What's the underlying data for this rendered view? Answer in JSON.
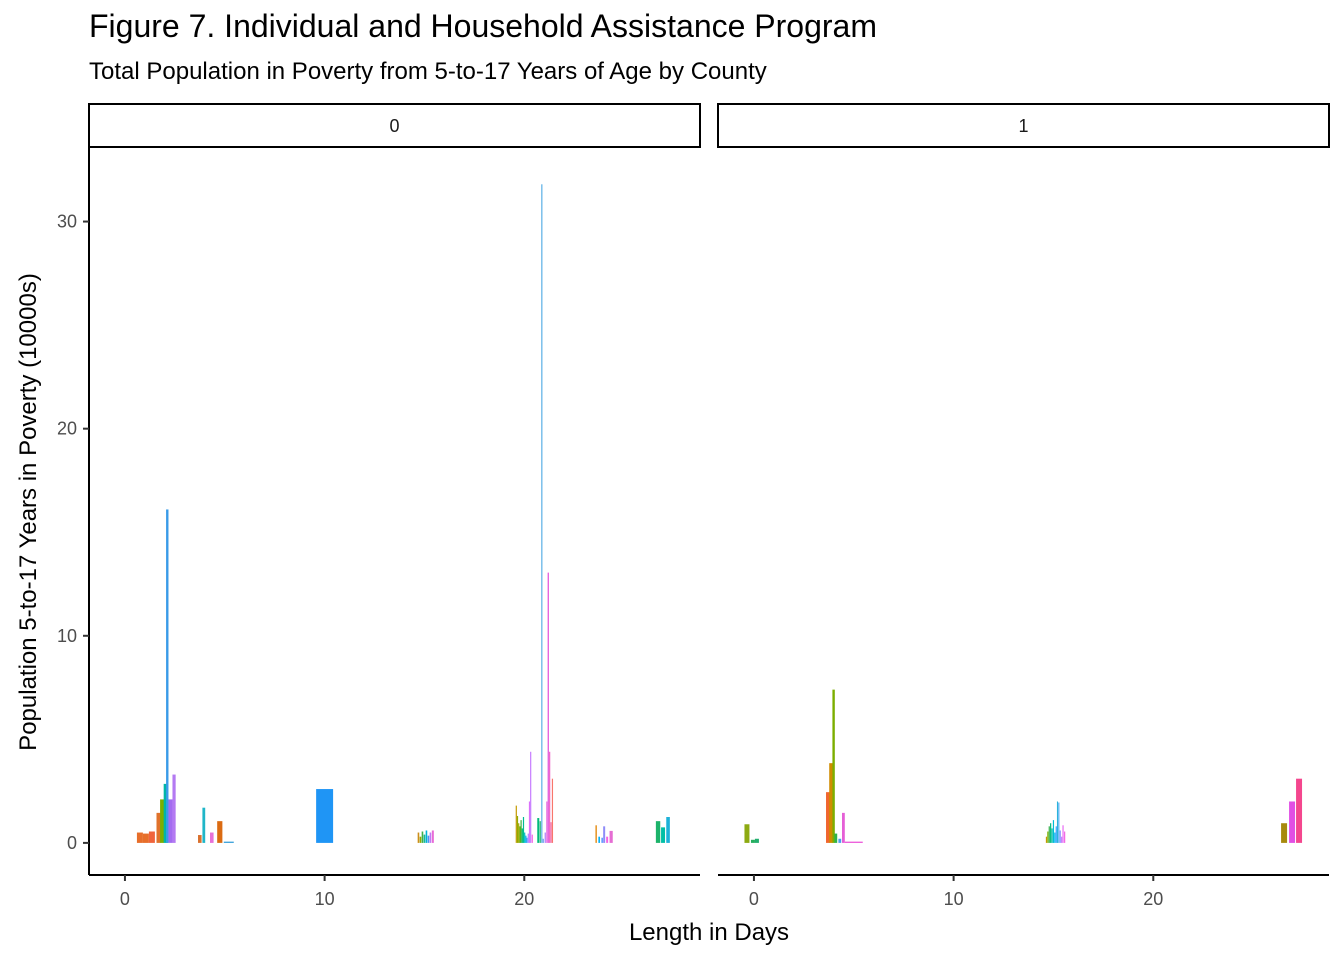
{
  "chart_data": {
    "type": "bar",
    "title": "Figure 7. Individual and Household Assistance Program",
    "subtitle": "Total Population in Poverty from 5-to-17 Years of Age by County",
    "xlabel": "Length in Days",
    "ylabel": "Population 5-to-17 Years in Poverty (10000s)",
    "xlim": [
      -1.8,
      28.8
    ],
    "ylim": [
      -1.55,
      33.6
    ],
    "x_ticks": [
      0,
      10,
      20
    ],
    "y_ticks": [
      0,
      10,
      20,
      30
    ],
    "grid": false,
    "legend": "none",
    "facets": [
      {
        "label": "0",
        "bars": [
          {
            "x": 0.75,
            "w": 0.3,
            "y": 0.5,
            "color": "#E76E2A"
          },
          {
            "x": 1.05,
            "w": 0.3,
            "y": 0.45,
            "color": "#E76E2A"
          },
          {
            "x": 1.35,
            "w": 0.3,
            "y": 0.55,
            "color": "#F0643C"
          },
          {
            "x": 1.68,
            "w": 0.2,
            "y": 1.45,
            "color": "#E0722B"
          },
          {
            "x": 1.86,
            "w": 0.2,
            "y": 2.1,
            "color": "#7CAE00"
          },
          {
            "x": 2.04,
            "w": 0.2,
            "y": 2.85,
            "color": "#00B5A8"
          },
          {
            "x": 2.12,
            "w": 0.12,
            "y": 16.1,
            "color": "#3A9BE8"
          },
          {
            "x": 2.28,
            "w": 0.2,
            "y": 2.1,
            "color": "#A46CF0"
          },
          {
            "x": 2.46,
            "w": 0.16,
            "y": 3.3,
            "color": "#B47AF2"
          },
          {
            "x": 3.75,
            "w": 0.18,
            "y": 0.38,
            "color": "#D9702D"
          },
          {
            "x": 3.95,
            "w": 0.14,
            "y": 1.7,
            "color": "#1FB6C8"
          },
          {
            "x": 4.35,
            "w": 0.18,
            "y": 0.5,
            "color": "#E771D8"
          },
          {
            "x": 4.75,
            "w": 0.26,
            "y": 1.05,
            "color": "#DB6B12"
          },
          {
            "x": 5.2,
            "w": 0.5,
            "y": 0.06,
            "color": "#2E9BD8"
          },
          {
            "x": 10.0,
            "w": 0.85,
            "y": 2.6,
            "color": "#1F95F5"
          },
          {
            "x": 14.7,
            "w": 0.08,
            "y": 0.5,
            "color": "#CC8E1A"
          },
          {
            "x": 14.8,
            "w": 0.08,
            "y": 0.3,
            "color": "#93AA00"
          },
          {
            "x": 14.9,
            "w": 0.08,
            "y": 0.55,
            "color": "#3DB04B"
          },
          {
            "x": 15.0,
            "w": 0.08,
            "y": 0.4,
            "color": "#17B895"
          },
          {
            "x": 15.1,
            "w": 0.08,
            "y": 0.6,
            "color": "#00B3D6"
          },
          {
            "x": 15.2,
            "w": 0.08,
            "y": 0.35,
            "color": "#4A96F0"
          },
          {
            "x": 15.3,
            "w": 0.08,
            "y": 0.5,
            "color": "#C27AF5"
          },
          {
            "x": 15.42,
            "w": 0.1,
            "y": 0.6,
            "color": "#E86BD6"
          },
          {
            "x": 19.6,
            "w": 0.06,
            "y": 1.8,
            "color": "#C49A00"
          },
          {
            "x": 19.66,
            "w": 0.06,
            "y": 1.3,
            "color": "#8EAB00"
          },
          {
            "x": 19.72,
            "w": 0.06,
            "y": 0.95,
            "color": "#A3A500"
          },
          {
            "x": 19.78,
            "w": 0.06,
            "y": 0.8,
            "color": "#69B100"
          },
          {
            "x": 19.84,
            "w": 0.06,
            "y": 1.1,
            "color": "#3DB33F"
          },
          {
            "x": 19.9,
            "w": 0.06,
            "y": 0.7,
            "color": "#00B86A"
          },
          {
            "x": 19.96,
            "w": 0.06,
            "y": 1.25,
            "color": "#00BC91"
          },
          {
            "x": 20.02,
            "w": 0.06,
            "y": 0.5,
            "color": "#00BDC2"
          },
          {
            "x": 20.08,
            "w": 0.06,
            "y": 0.35,
            "color": "#00B3E8"
          },
          {
            "x": 20.14,
            "w": 0.06,
            "y": 0.25,
            "color": "#619CFF"
          },
          {
            "x": 20.2,
            "w": 0.06,
            "y": 0.45,
            "color": "#A58AFF"
          },
          {
            "x": 20.26,
            "w": 0.06,
            "y": 2.0,
            "color": "#DB72FB"
          },
          {
            "x": 20.32,
            "w": 0.06,
            "y": 4.4,
            "color": "#C77CFF"
          },
          {
            "x": 20.4,
            "w": 0.06,
            "y": 0.4,
            "color": "#F564E3"
          },
          {
            "x": 20.7,
            "w": 0.1,
            "y": 1.2,
            "color": "#00BA7A"
          },
          {
            "x": 20.8,
            "w": 0.06,
            "y": 1.05,
            "color": "#2BB57A"
          },
          {
            "x": 20.88,
            "w": 0.05,
            "y": 31.8,
            "color": "#3AA0E0"
          },
          {
            "x": 20.95,
            "w": 0.06,
            "y": 0.2,
            "color": "#6CA0F0"
          },
          {
            "x": 21.05,
            "w": 0.06,
            "y": 0.5,
            "color": "#B07CF8"
          },
          {
            "x": 21.13,
            "w": 0.06,
            "y": 2.0,
            "color": "#E76BE0"
          },
          {
            "x": 21.2,
            "w": 0.06,
            "y": 13.05,
            "color": "#E14BD8"
          },
          {
            "x": 21.27,
            "w": 0.06,
            "y": 4.4,
            "color": "#EF62C8"
          },
          {
            "x": 21.34,
            "w": 0.06,
            "y": 1.0,
            "color": "#F36EA0"
          },
          {
            "x": 21.41,
            "w": 0.06,
            "y": 3.1,
            "color": "#F8766D"
          },
          {
            "x": 23.6,
            "w": 0.08,
            "y": 0.85,
            "color": "#E89A2F"
          },
          {
            "x": 23.75,
            "w": 0.08,
            "y": 0.3,
            "color": "#00B0F6"
          },
          {
            "x": 23.9,
            "w": 0.08,
            "y": 0.25,
            "color": "#619CFF"
          },
          {
            "x": 24.0,
            "w": 0.1,
            "y": 0.8,
            "color": "#8F8CF8"
          },
          {
            "x": 24.15,
            "w": 0.1,
            "y": 0.3,
            "color": "#F564E3"
          },
          {
            "x": 24.35,
            "w": 0.16,
            "y": 0.58,
            "color": "#E56DD3"
          },
          {
            "x": 26.7,
            "w": 0.22,
            "y": 1.05,
            "color": "#1CB36A"
          },
          {
            "x": 26.95,
            "w": 0.2,
            "y": 0.75,
            "color": "#00BFA6"
          },
          {
            "x": 27.2,
            "w": 0.18,
            "y": 1.25,
            "color": "#1CB1D8"
          }
        ]
      },
      {
        "label": "1",
        "bars": [
          {
            "x": -0.35,
            "w": 0.25,
            "y": 0.9,
            "color": "#8DAA12"
          },
          {
            "x": -0.05,
            "w": 0.2,
            "y": 0.15,
            "color": "#27AE5E"
          },
          {
            "x": 0.15,
            "w": 0.2,
            "y": 0.2,
            "color": "#23AE6E"
          },
          {
            "x": 3.7,
            "w": 0.18,
            "y": 2.45,
            "color": "#F0662E"
          },
          {
            "x": 3.86,
            "w": 0.18,
            "y": 3.85,
            "color": "#D08C00"
          },
          {
            "x": 3.99,
            "w": 0.12,
            "y": 7.4,
            "color": "#7CAE00"
          },
          {
            "x": 4.1,
            "w": 0.14,
            "y": 0.45,
            "color": "#2FB44A"
          },
          {
            "x": 4.3,
            "w": 0.14,
            "y": 0.2,
            "color": "#4A9EF0"
          },
          {
            "x": 4.48,
            "w": 0.14,
            "y": 1.45,
            "color": "#E55FD6"
          },
          {
            "x": 5.0,
            "w": 0.9,
            "y": 0.06,
            "color": "#EB4FD8"
          },
          {
            "x": 14.65,
            "w": 0.06,
            "y": 0.3,
            "color": "#C49A00"
          },
          {
            "x": 14.72,
            "w": 0.06,
            "y": 0.55,
            "color": "#7CAE00"
          },
          {
            "x": 14.79,
            "w": 0.06,
            "y": 0.8,
            "color": "#33B24B"
          },
          {
            "x": 14.86,
            "w": 0.06,
            "y": 0.95,
            "color": "#00BA7A"
          },
          {
            "x": 14.93,
            "w": 0.06,
            "y": 0.7,
            "color": "#00BDA8"
          },
          {
            "x": 15.0,
            "w": 0.06,
            "y": 1.1,
            "color": "#00BCD4"
          },
          {
            "x": 15.07,
            "w": 0.06,
            "y": 0.5,
            "color": "#00B4EF"
          },
          {
            "x": 15.14,
            "w": 0.06,
            "y": 0.8,
            "color": "#35A2FF"
          },
          {
            "x": 15.2,
            "w": 0.05,
            "y": 2.0,
            "color": "#1FB1D8"
          },
          {
            "x": 15.27,
            "w": 0.05,
            "y": 1.95,
            "color": "#2F9EF2"
          },
          {
            "x": 15.34,
            "w": 0.06,
            "y": 0.6,
            "color": "#8B93FF"
          },
          {
            "x": 15.41,
            "w": 0.06,
            "y": 0.3,
            "color": "#C77CFF"
          },
          {
            "x": 15.48,
            "w": 0.06,
            "y": 0.85,
            "color": "#E76BF3"
          },
          {
            "x": 15.56,
            "w": 0.06,
            "y": 0.55,
            "color": "#F564E3"
          },
          {
            "x": 26.55,
            "w": 0.3,
            "y": 0.95,
            "color": "#A78A0E"
          },
          {
            "x": 26.95,
            "w": 0.3,
            "y": 2.0,
            "color": "#E14FE4"
          },
          {
            "x": 27.3,
            "w": 0.3,
            "y": 3.1,
            "color": "#F4468E"
          }
        ]
      }
    ]
  }
}
